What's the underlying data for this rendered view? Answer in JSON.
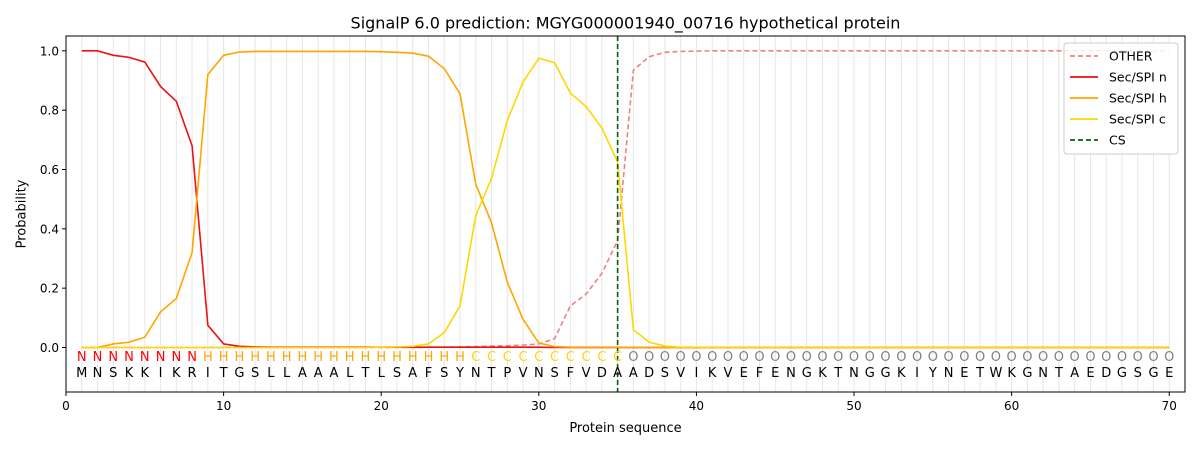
{
  "chart_data": {
    "type": "line",
    "title": "SignalP 6.0 prediction: MGYG000001940_00716 hypothetical protein",
    "xlabel": "Protein sequence",
    "ylabel": "Probability",
    "xlim": [
      0,
      71
    ],
    "ylim": [
      -0.15,
      1.05
    ],
    "xticks": [
      0,
      10,
      20,
      30,
      40,
      50,
      60,
      70
    ],
    "yticks": [
      0.0,
      0.2,
      0.4,
      0.6,
      0.8,
      1.0
    ],
    "grid": "vertical lines at each residue",
    "legend_position": "top-right",
    "residues": [
      "M",
      "N",
      "S",
      "K",
      "K",
      "I",
      "K",
      "R",
      "I",
      "T",
      "G",
      "S",
      "L",
      "L",
      "A",
      "A",
      "A",
      "L",
      "T",
      "L",
      "S",
      "A",
      "F",
      "S",
      "Y",
      "N",
      "T",
      "P",
      "V",
      "N",
      "S",
      "F",
      "V",
      "D",
      "A",
      "A",
      "D",
      "S",
      "V",
      "I",
      "K",
      "V",
      "E",
      "F",
      "E",
      "N",
      "G",
      "K",
      "T",
      "N",
      "G",
      "G",
      "K",
      "I",
      "Y",
      "N",
      "E",
      "T",
      "W",
      "K",
      "G",
      "N",
      "T",
      "A",
      "E",
      "D",
      "G",
      "S",
      "G",
      "E"
    ],
    "labels": [
      "N",
      "N",
      "N",
      "N",
      "N",
      "N",
      "N",
      "N",
      "H",
      "H",
      "H",
      "H",
      "H",
      "H",
      "H",
      "H",
      "H",
      "H",
      "H",
      "H",
      "H",
      "H",
      "H",
      "H",
      "H",
      "C",
      "C",
      "C",
      "C",
      "C",
      "C",
      "C",
      "C",
      "C",
      "C",
      "O",
      "O",
      "O",
      "O",
      "O",
      "O",
      "O",
      "O",
      "O",
      "O",
      "O",
      "O",
      "O",
      "O",
      "O",
      "O",
      "O",
      "O",
      "O",
      "O",
      "O",
      "O",
      "O",
      "O",
      "O",
      "O",
      "O",
      "O",
      "O",
      "O",
      "O",
      "O",
      "O",
      "O",
      "O"
    ],
    "label_colors": {
      "N": "#ff0000",
      "H": "#ffa500",
      "C": "#ffd700",
      "O": "#808080"
    },
    "cleavage_site": 35,
    "series": [
      {
        "name": "OTHER",
        "color": "#f08080",
        "style": "dashed",
        "values": [
          0,
          0,
          0,
          0,
          0,
          0,
          0,
          0,
          0,
          0,
          0,
          0,
          0,
          0,
          0,
          0,
          0,
          0,
          0,
          0,
          0,
          0,
          0.001,
          0.001,
          0.002,
          0.003,
          0.005,
          0.006,
          0.008,
          0.012,
          0.03,
          0.14,
          0.18,
          0.25,
          0.36,
          0.935,
          0.98,
          0.995,
          0.998,
          0.999,
          1,
          1,
          1,
          1,
          1,
          1,
          1,
          1,
          1,
          1,
          1,
          1,
          1,
          1,
          1,
          1,
          1,
          1,
          1,
          1,
          1,
          1,
          1,
          1,
          1,
          1,
          1,
          1,
          1,
          1
        ]
      },
      {
        "name": "Sec/SPI n",
        "color": "#ee1111",
        "style": "solid",
        "values": [
          1.0,
          1.0,
          0.985,
          0.978,
          0.962,
          0.88,
          0.83,
          0.68,
          0.075,
          0.012,
          0.004,
          0.002,
          0.001,
          0.001,
          0.001,
          0.001,
          0.001,
          0.001,
          0.001,
          0.001,
          0.001,
          0.001,
          0.001,
          0.001,
          0.001,
          0.001,
          0.001,
          0.001,
          0.001,
          0.001,
          0,
          0,
          0,
          0,
          0,
          0,
          0,
          0,
          0,
          0,
          0,
          0,
          0,
          0,
          0,
          0,
          0,
          0,
          0,
          0,
          0,
          0,
          0,
          0,
          0,
          0,
          0,
          0,
          0,
          0,
          0,
          0,
          0,
          0,
          0,
          0,
          0,
          0,
          0,
          0
        ]
      },
      {
        "name": "Sec/SPI h",
        "color": "#ffa500",
        "style": "solid",
        "values": [
          0,
          0,
          0.012,
          0.018,
          0.035,
          0.12,
          0.165,
          0.32,
          0.92,
          0.985,
          0.996,
          0.998,
          0.998,
          0.998,
          0.998,
          0.998,
          0.998,
          0.998,
          0.998,
          0.997,
          0.995,
          0.992,
          0.982,
          0.94,
          0.855,
          0.55,
          0.42,
          0.22,
          0.095,
          0.015,
          0.003,
          0.001,
          0.001,
          0.001,
          0.001,
          0,
          0,
          0,
          0,
          0,
          0,
          0,
          0,
          0,
          0,
          0,
          0,
          0,
          0,
          0,
          0,
          0,
          0,
          0,
          0,
          0,
          0,
          0,
          0,
          0,
          0,
          0,
          0,
          0,
          0,
          0,
          0,
          0,
          0,
          0
        ]
      },
      {
        "name": "Sec/SPI c",
        "color": "#ffd700",
        "style": "solid",
        "values": [
          0,
          0,
          0,
          0,
          0,
          0,
          0,
          0,
          0,
          0,
          0,
          0,
          0,
          0,
          0,
          0,
          0,
          0,
          0,
          0.001,
          0.002,
          0.004,
          0.012,
          0.05,
          0.14,
          0.445,
          0.57,
          0.765,
          0.895,
          0.975,
          0.96,
          0.858,
          0.812,
          0.74,
          0.625,
          0.06,
          0.018,
          0.005,
          0.001,
          0.001,
          0,
          0,
          0,
          0,
          0,
          0,
          0,
          0,
          0,
          0,
          0,
          0,
          0,
          0,
          0,
          0,
          0,
          0,
          0,
          0,
          0,
          0,
          0,
          0,
          0,
          0,
          0,
          0,
          0,
          0
        ]
      },
      {
        "name": "CS",
        "color": "#006400",
        "style": "dashed"
      }
    ]
  }
}
